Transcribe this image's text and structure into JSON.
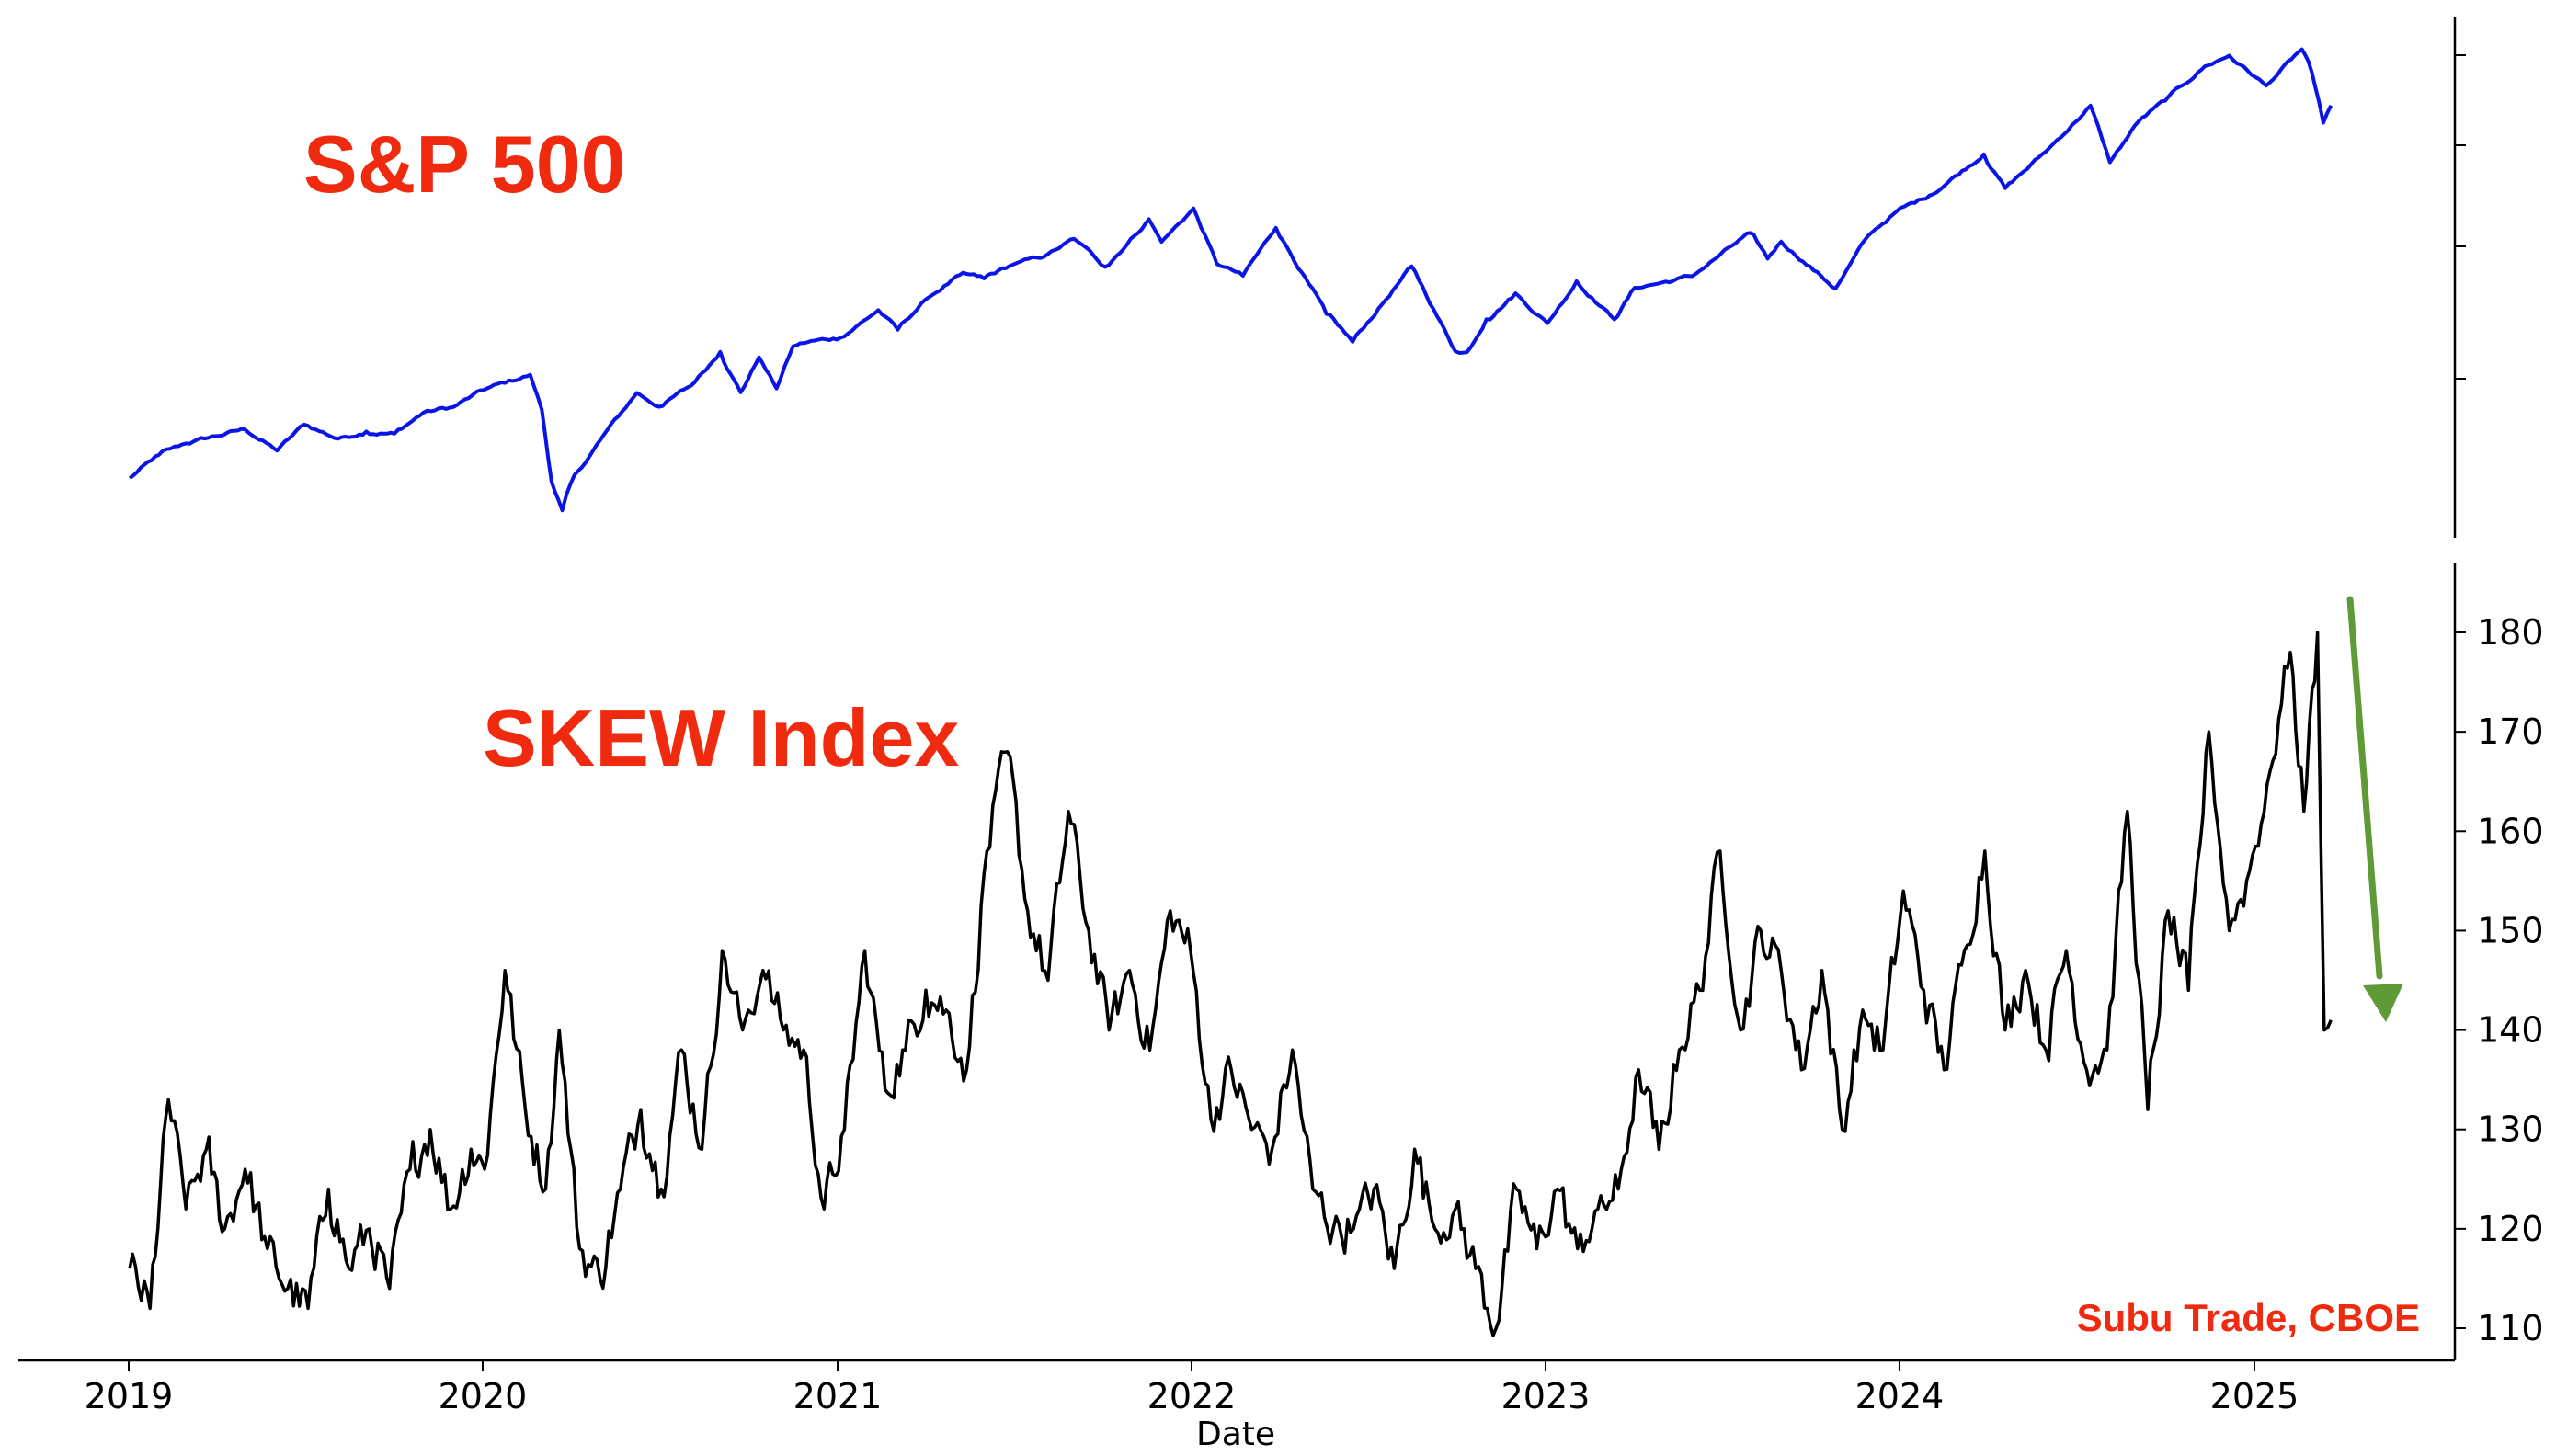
{
  "annotations": {
    "sp500_label": "S&P 500",
    "skew_label": "SKEW Index",
    "source": "Subu Trade, CBOE"
  },
  "colors": {
    "sp500_line": "#0a14e6",
    "skew_line": "#000000",
    "title_text": "#f02a0e",
    "arrow": "#5e9a36"
  },
  "chart_data": [
    {
      "type": "line",
      "title": "",
      "xlabel": "",
      "ylabel": "",
      "x_unit": "date",
      "x_range": [
        "2019-01-01",
        "2025-03-21"
      ],
      "yticks": "unlabeled",
      "series": [
        {
          "name": "S&P 500",
          "x": [
            "2019-01-02",
            "2019-02-01",
            "2019-03-01",
            "2019-04-01",
            "2019-05-01",
            "2019-06-03",
            "2019-07-01",
            "2019-08-05",
            "2019-09-03",
            "2019-10-02",
            "2019-11-01",
            "2019-12-02",
            "2020-01-02",
            "2020-02-19",
            "2020-03-02",
            "2020-03-12",
            "2020-03-23",
            "2020-04-01",
            "2020-05-01",
            "2020-06-08",
            "2020-07-01",
            "2020-08-03",
            "2020-09-02",
            "2020-09-23",
            "2020-10-12",
            "2020-10-30",
            "2020-11-16",
            "2020-12-01",
            "2021-01-04",
            "2021-02-12",
            "2021-03-04",
            "2021-04-01",
            "2021-05-07",
            "2021-06-01",
            "2021-07-01",
            "2021-08-02",
            "2021-09-02",
            "2021-10-04",
            "2021-11-18",
            "2021-12-01",
            "2022-01-03",
            "2022-01-27",
            "2022-02-23",
            "2022-03-29",
            "2022-05-02",
            "2022-05-20",
            "2022-06-16",
            "2022-08-16",
            "2022-09-30",
            "2022-10-12",
            "2022-11-01",
            "2022-12-01",
            "2023-01-03",
            "2023-02-02",
            "2023-03-13",
            "2023-04-03",
            "2023-05-01",
            "2023-06-01",
            "2023-07-31",
            "2023-08-18",
            "2023-09-01",
            "2023-10-27",
            "2023-11-30",
            "2023-12-29",
            "2024-02-01",
            "2024-03-28",
            "2024-04-19",
            "2024-05-31",
            "2024-07-16",
            "2024-08-05",
            "2024-09-03",
            "2024-10-01",
            "2024-11-11",
            "2024-12-06",
            "2025-01-13",
            "2025-02-19",
            "2025-03-01",
            "2025-03-13",
            "2025-03-21"
          ],
          "values": [
            2510,
            2706,
            2804,
            2867,
            2923,
            2744,
            2964,
            2844,
            2906,
            2887,
            3066,
            3113,
            3257,
            3386,
            3090,
            2480,
            2237,
            2470,
            2830,
            3232,
            3115,
            3294,
            3580,
            3237,
            3534,
            3270,
            3627,
            3662,
            3700,
            3934,
            3768,
            4019,
            4232,
            4202,
            4320,
            4387,
            4537,
            4300,
            4704,
            4513,
            4796,
            4326,
            4225,
            4631,
            4155,
            3901,
            3666,
            4305,
            3585,
            3577,
            3856,
            4076,
            3824,
            4179,
            3855,
            4124,
            4167,
            4221,
            4588,
            4370,
            4515,
            4117,
            4567,
            4770,
            4906,
            5254,
            4967,
            5277,
            5667,
            5186,
            5528,
            5708,
            6001,
            6090,
            5836,
            6144,
            5954,
            5521,
            5668
          ]
        },
        {
          "name": "SKEW Index",
          "x": [
            "2019-01-02",
            "2019-01-23",
            "2019-02-11",
            "2019-03-01",
            "2019-03-22",
            "2019-04-10",
            "2019-05-01",
            "2019-05-24",
            "2019-06-14",
            "2019-07-05",
            "2019-07-26",
            "2019-08-16",
            "2019-09-06",
            "2019-09-27",
            "2019-10-18",
            "2019-11-08",
            "2019-11-29",
            "2019-12-20",
            "2020-01-03",
            "2020-01-24",
            "2020-02-14",
            "2020-03-06",
            "2020-03-20",
            "2020-04-10",
            "2020-05-01",
            "2020-05-22",
            "2020-06-12",
            "2020-07-03",
            "2020-07-24",
            "2020-08-14",
            "2020-09-04",
            "2020-09-25",
            "2020-10-16",
            "2020-11-06",
            "2020-11-27",
            "2020-12-18",
            "2021-01-08",
            "2021-01-29",
            "2021-02-19",
            "2021-03-12",
            "2021-04-02",
            "2021-04-23",
            "2021-05-14",
            "2021-06-04",
            "2021-06-25",
            "2021-07-16",
            "2021-08-06",
            "2021-08-27",
            "2021-09-17",
            "2021-10-08",
            "2021-10-29",
            "2021-11-19",
            "2021-12-10",
            "2021-12-31",
            "2022-01-21",
            "2022-02-11",
            "2022-03-04",
            "2022-03-25",
            "2022-04-15",
            "2022-05-06",
            "2022-05-27",
            "2022-06-17",
            "2022-07-08",
            "2022-07-29",
            "2022-08-19",
            "2022-09-09",
            "2022-09-30",
            "2022-10-21",
            "2022-11-11",
            "2022-12-02",
            "2022-12-23",
            "2023-01-13",
            "2023-02-03",
            "2023-02-24",
            "2023-03-17",
            "2023-04-07",
            "2023-04-28",
            "2023-05-19",
            "2023-06-09",
            "2023-06-30",
            "2023-07-21",
            "2023-08-11",
            "2023-09-01",
            "2023-09-22",
            "2023-10-13",
            "2023-11-03",
            "2023-11-24",
            "2023-12-15",
            "2024-01-05",
            "2024-01-26",
            "2024-02-16",
            "2024-03-08",
            "2024-03-29",
            "2024-04-19",
            "2024-05-10",
            "2024-05-31",
            "2024-06-21",
            "2024-07-12",
            "2024-08-02",
            "2024-08-23",
            "2024-09-13",
            "2024-10-04",
            "2024-10-25",
            "2024-11-15",
            "2024-12-06",
            "2024-12-27",
            "2025-01-17",
            "2025-02-07",
            "2025-02-21",
            "2025-03-07",
            "2025-03-14",
            "2025-03-21"
          ],
          "values": [
            116,
            112,
            133,
            122,
            128,
            120,
            126,
            118,
            114,
            112,
            124,
            116,
            120,
            114,
            126,
            130,
            122,
            128,
            126,
            146,
            132,
            124,
            140,
            118,
            115,
            124,
            132,
            124,
            138,
            128,
            148,
            140,
            146,
            140,
            138,
            122,
            130,
            148,
            134,
            138,
            144,
            142,
            136,
            158,
            168,
            152,
            145,
            162,
            150,
            140,
            146,
            138,
            152,
            148,
            131,
            136,
            130,
            128,
            138,
            124,
            120,
            120,
            124,
            116,
            128,
            120,
            122,
            116,
            110,
            124,
            118,
            124,
            118,
            122,
            124,
            136,
            128,
            138,
            144,
            158,
            140,
            150,
            146,
            136,
            146,
            130,
            142,
            138,
            154,
            144,
            136,
            148,
            158,
            140,
            146,
            138,
            148,
            136,
            138,
            162,
            132,
            152,
            144,
            170,
            150,
            156,
            166,
            178,
            162,
            180,
            140,
            141
          ]
        }
      ]
    },
    {
      "type": "line",
      "title": "",
      "xlabel": "Date",
      "ylabel": "",
      "ylim": [
        108,
        187
      ],
      "yticks": [
        110,
        120,
        130,
        140,
        150,
        160,
        170,
        180
      ],
      "xticks": [
        "2019",
        "2020",
        "2021",
        "2022",
        "2023",
        "2024",
        "2025"
      ],
      "legend": "none"
    }
  ]
}
